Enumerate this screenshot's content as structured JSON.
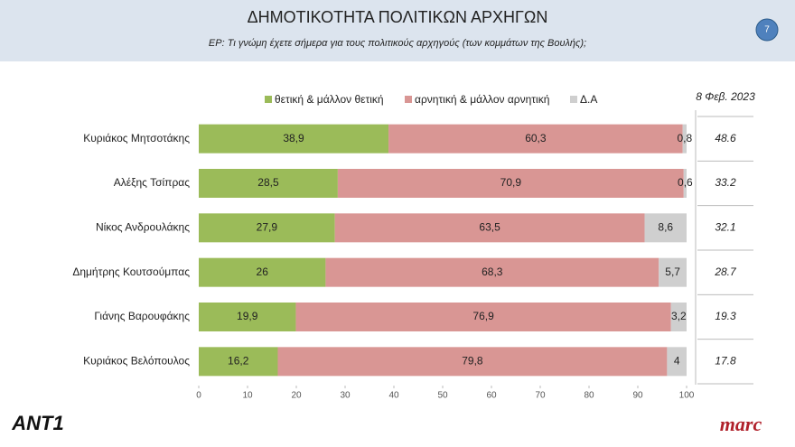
{
  "chart_data": {
    "type": "stacked-barh",
    "title": "ΔΗΜΟΤΙΚΟΤΗΤΑ ΠΟΛΙΤΙΚΩΝ ΑΡΧΗΓΩΝ",
    "subtitle": "ΕΡ: Τι γνώμη έχετε σήμερα για τους πολιτικούς αρχηγούς (των κομμάτων της Βουλής);",
    "page_number": 7,
    "categories": [
      "Κυριάκος Μητσοτάκης",
      "Αλέξης Τσίπρας",
      "Νίκος Ανδρουλάκης",
      "Δημήτρης Κουτσούμπας",
      "Γιάνης Βαρουφάκης",
      "Κυριάκος Βελόπουλος"
    ],
    "series": [
      {
        "name": "θετική & μάλλον θετική",
        "color": "#9bbb59",
        "values": [
          38.9,
          28.5,
          27.9,
          26,
          19.9,
          16.2
        ],
        "value_labels": [
          "38,9",
          "28,5",
          "27,9",
          "26",
          "19,9",
          "16,2"
        ]
      },
      {
        "name": "αρνητική & μάλλον αρνητική",
        "color": "#d99694",
        "values": [
          60.3,
          70.9,
          63.5,
          68.3,
          76.9,
          79.8
        ],
        "value_labels": [
          "60,3",
          "70,9",
          "63,5",
          "68,3",
          "76,9",
          "79,8"
        ]
      },
      {
        "name": "Δ.Α",
        "color": "#cfcfcf",
        "values": [
          0.8,
          0.6,
          8.6,
          5.7,
          3.2,
          4
        ],
        "value_labels": [
          "0,8",
          "0,6",
          "8,6",
          "5,7",
          "3,2",
          "4"
        ]
      }
    ],
    "xlim": [
      0,
      100
    ],
    "xticks": [
      0,
      10,
      20,
      30,
      40,
      50,
      60,
      70,
      80,
      90,
      100
    ],
    "legend": "top",
    "side_column": {
      "header": "8 Φεβ. 2023",
      "values": [
        48.6,
        33.2,
        32.1,
        28.7,
        19.3,
        17.8
      ]
    },
    "logos": {
      "left": "ANT1",
      "right": "marc"
    }
  }
}
